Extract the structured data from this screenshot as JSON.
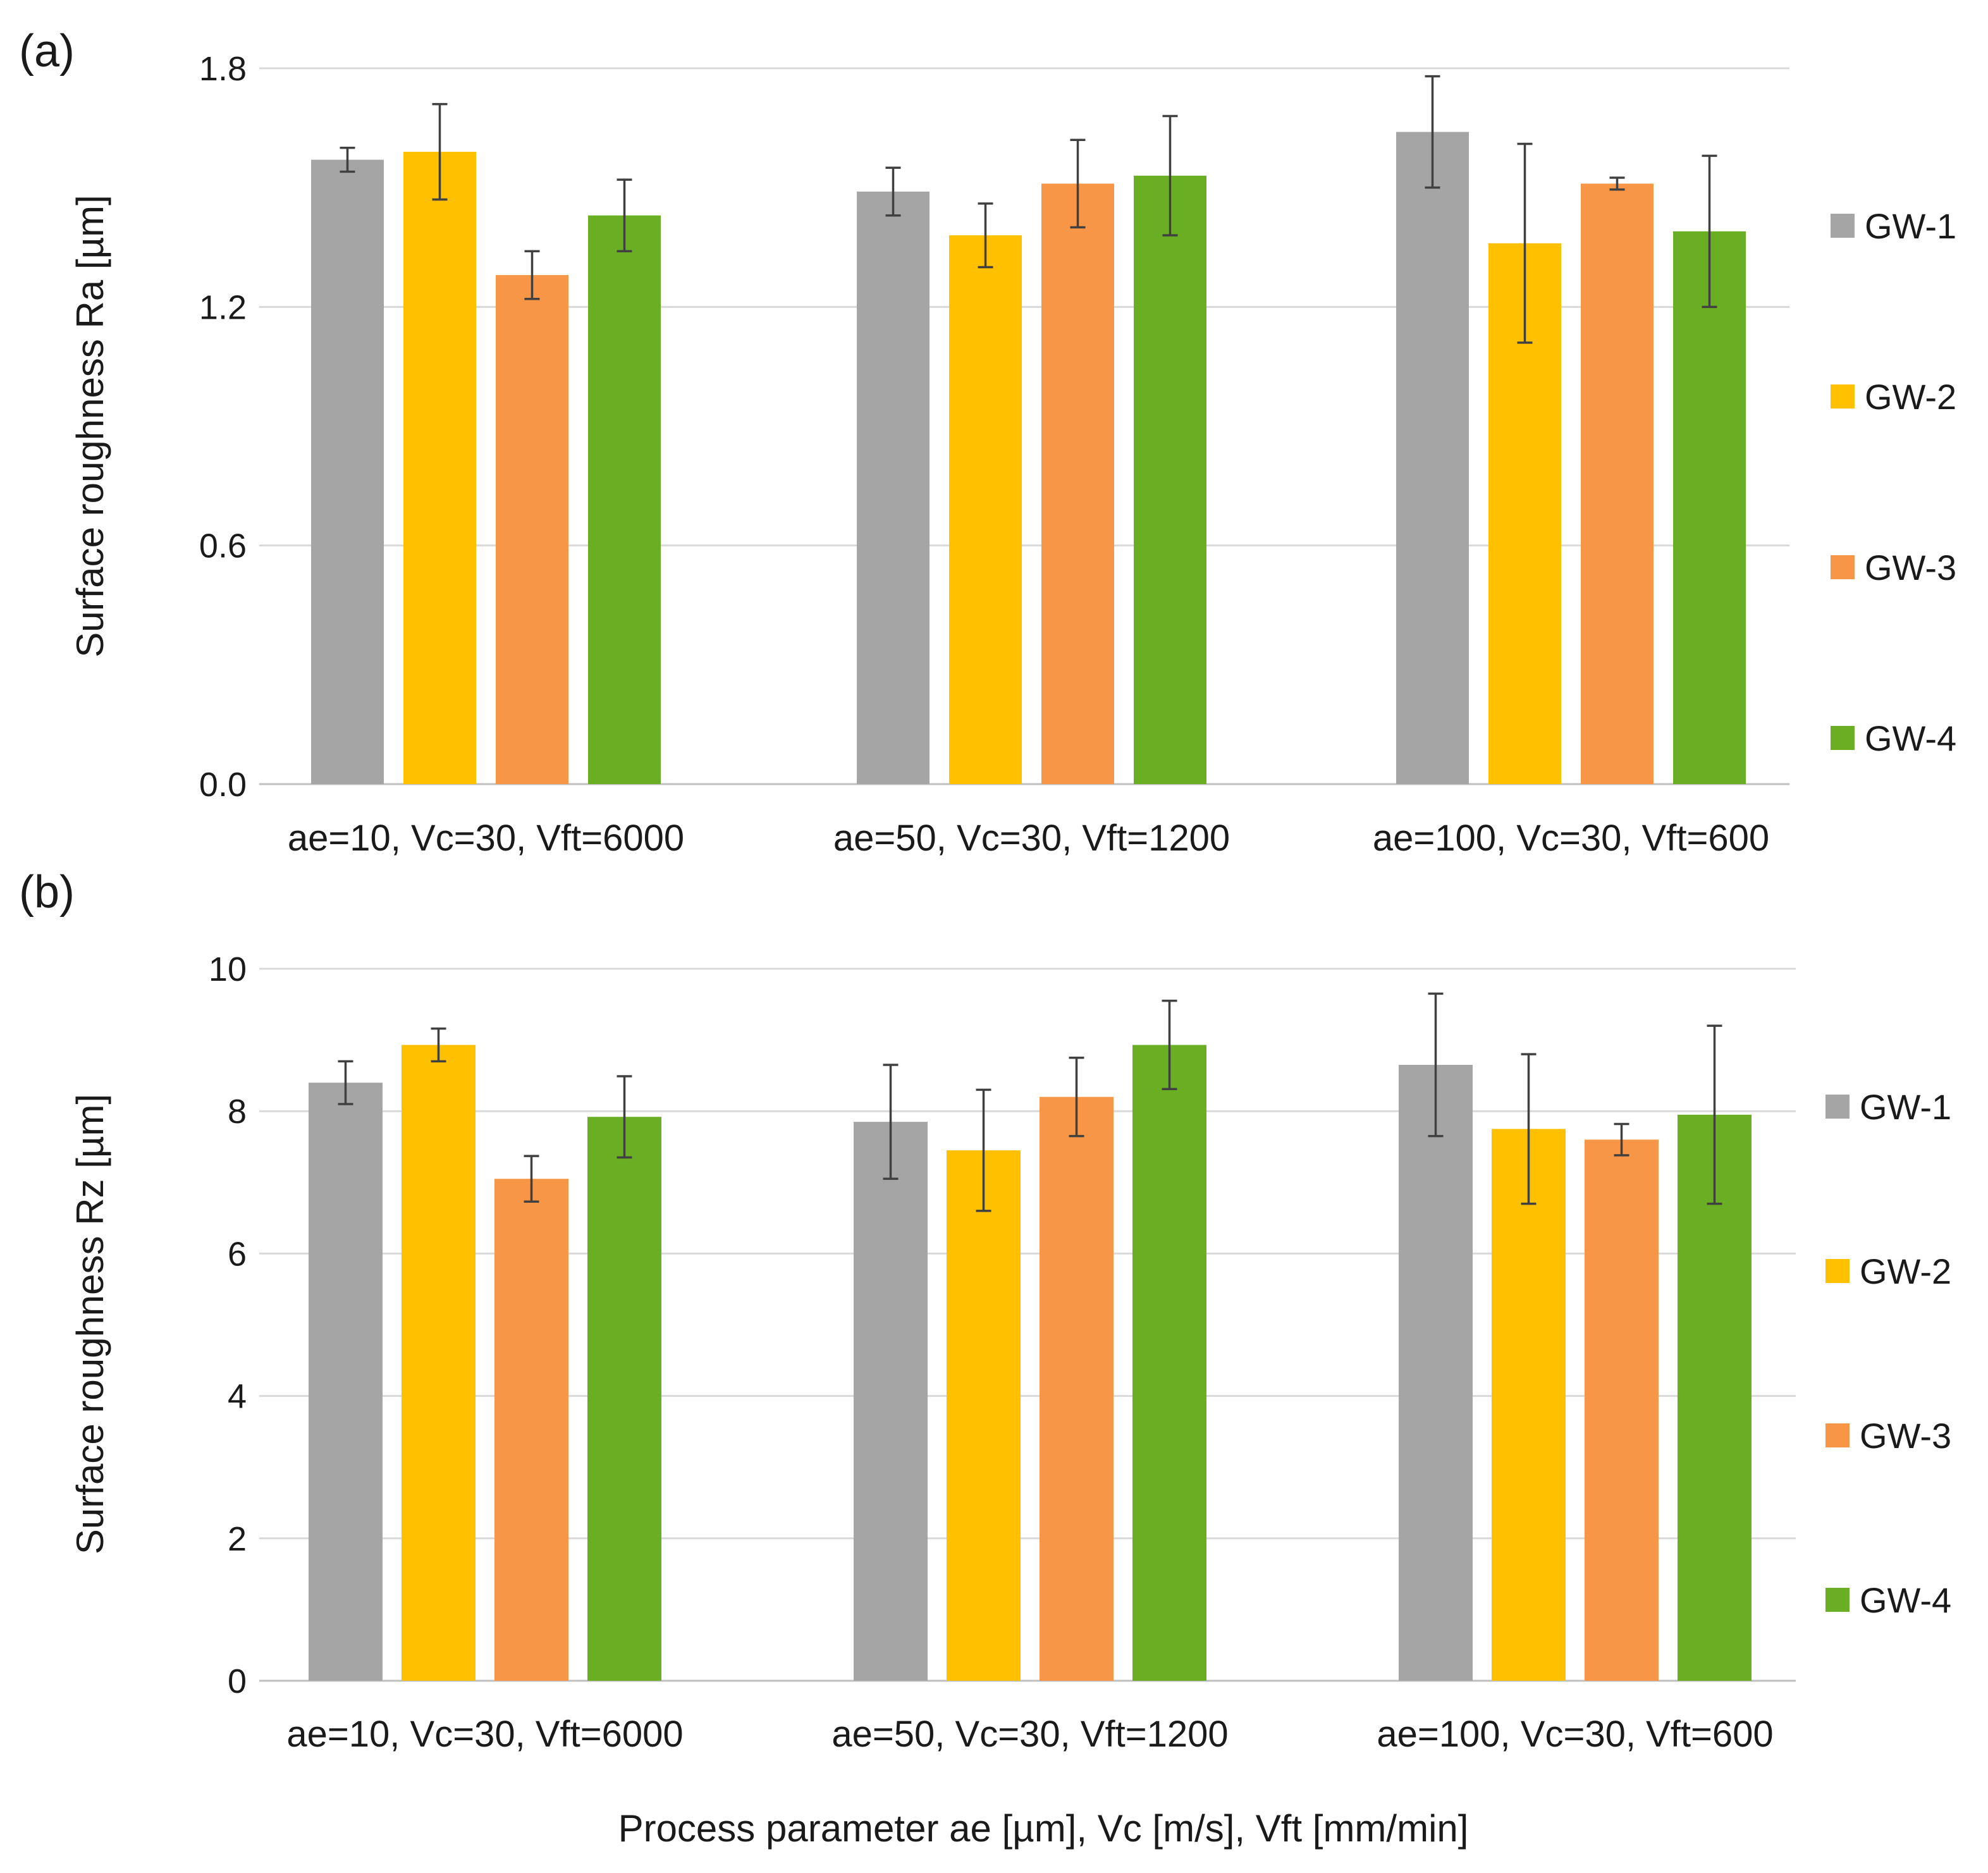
{
  "xlabel": "Process parameter ae [µm], Vc [m/s], Vft [mm/min]",
  "chart_data": [
    {
      "type": "bar",
      "panel_label": "(a)",
      "title": "",
      "xlabel": "",
      "ylabel": "Surface roughness Ra [µm]",
      "ylim": [
        0,
        1.8
      ],
      "yticks": [
        "0.0",
        "0.6",
        "1.2",
        "1.8"
      ],
      "grid": true,
      "legend_position": "right",
      "categories": [
        "ae=10, Vc=30, Vft=6000",
        "ae=50, Vc=30, Vft=1200",
        "ae=100, Vc=30, Vft=600"
      ],
      "series": [
        {
          "name": "GW-1",
          "color": "#a5a5a5",
          "values": [
            1.57,
            1.49,
            1.64
          ],
          "errors": [
            0.03,
            0.06,
            0.14
          ]
        },
        {
          "name": "GW-2",
          "color": "#ffc000",
          "values": [
            1.59,
            1.38,
            1.36
          ],
          "errors": [
            0.12,
            0.08,
            0.25
          ]
        },
        {
          "name": "GW-3",
          "color": "#f79646",
          "values": [
            1.28,
            1.51,
            1.51
          ],
          "errors": [
            0.06,
            0.11,
            0.015
          ]
        },
        {
          "name": "GW-4",
          "color": "#6aaf23",
          "values": [
            1.43,
            1.53,
            1.39
          ],
          "errors": [
            0.09,
            0.15,
            0.19
          ]
        }
      ]
    },
    {
      "type": "bar",
      "panel_label": "(b)",
      "title": "",
      "xlabel": "Process parameter ae [µm], Vc [m/s], Vft [mm/min]",
      "ylabel": "Surface roughness Rz [µm]",
      "ylim": [
        0,
        10
      ],
      "yticks": [
        "0",
        "2",
        "4",
        "6",
        "8",
        "10"
      ],
      "grid": true,
      "legend_position": "right",
      "categories": [
        "ae=10, Vc=30, Vft=6000",
        "ae=50, Vc=30, Vft=1200",
        "ae=100, Vc=30, Vft=600"
      ],
      "series": [
        {
          "name": "GW-1",
          "color": "#a5a5a5",
          "values": [
            8.4,
            7.85,
            8.65
          ],
          "errors": [
            0.3,
            0.8,
            1.0
          ]
        },
        {
          "name": "GW-2",
          "color": "#ffc000",
          "values": [
            8.93,
            7.45,
            7.75
          ],
          "errors": [
            0.23,
            0.85,
            1.05
          ]
        },
        {
          "name": "GW-3",
          "color": "#f79646",
          "values": [
            7.05,
            8.2,
            7.6
          ],
          "errors": [
            0.32,
            0.55,
            0.22
          ]
        },
        {
          "name": "GW-4",
          "color": "#6aaf23",
          "values": [
            7.92,
            8.93,
            7.95
          ],
          "errors": [
            0.57,
            0.62,
            1.25
          ]
        }
      ]
    }
  ]
}
